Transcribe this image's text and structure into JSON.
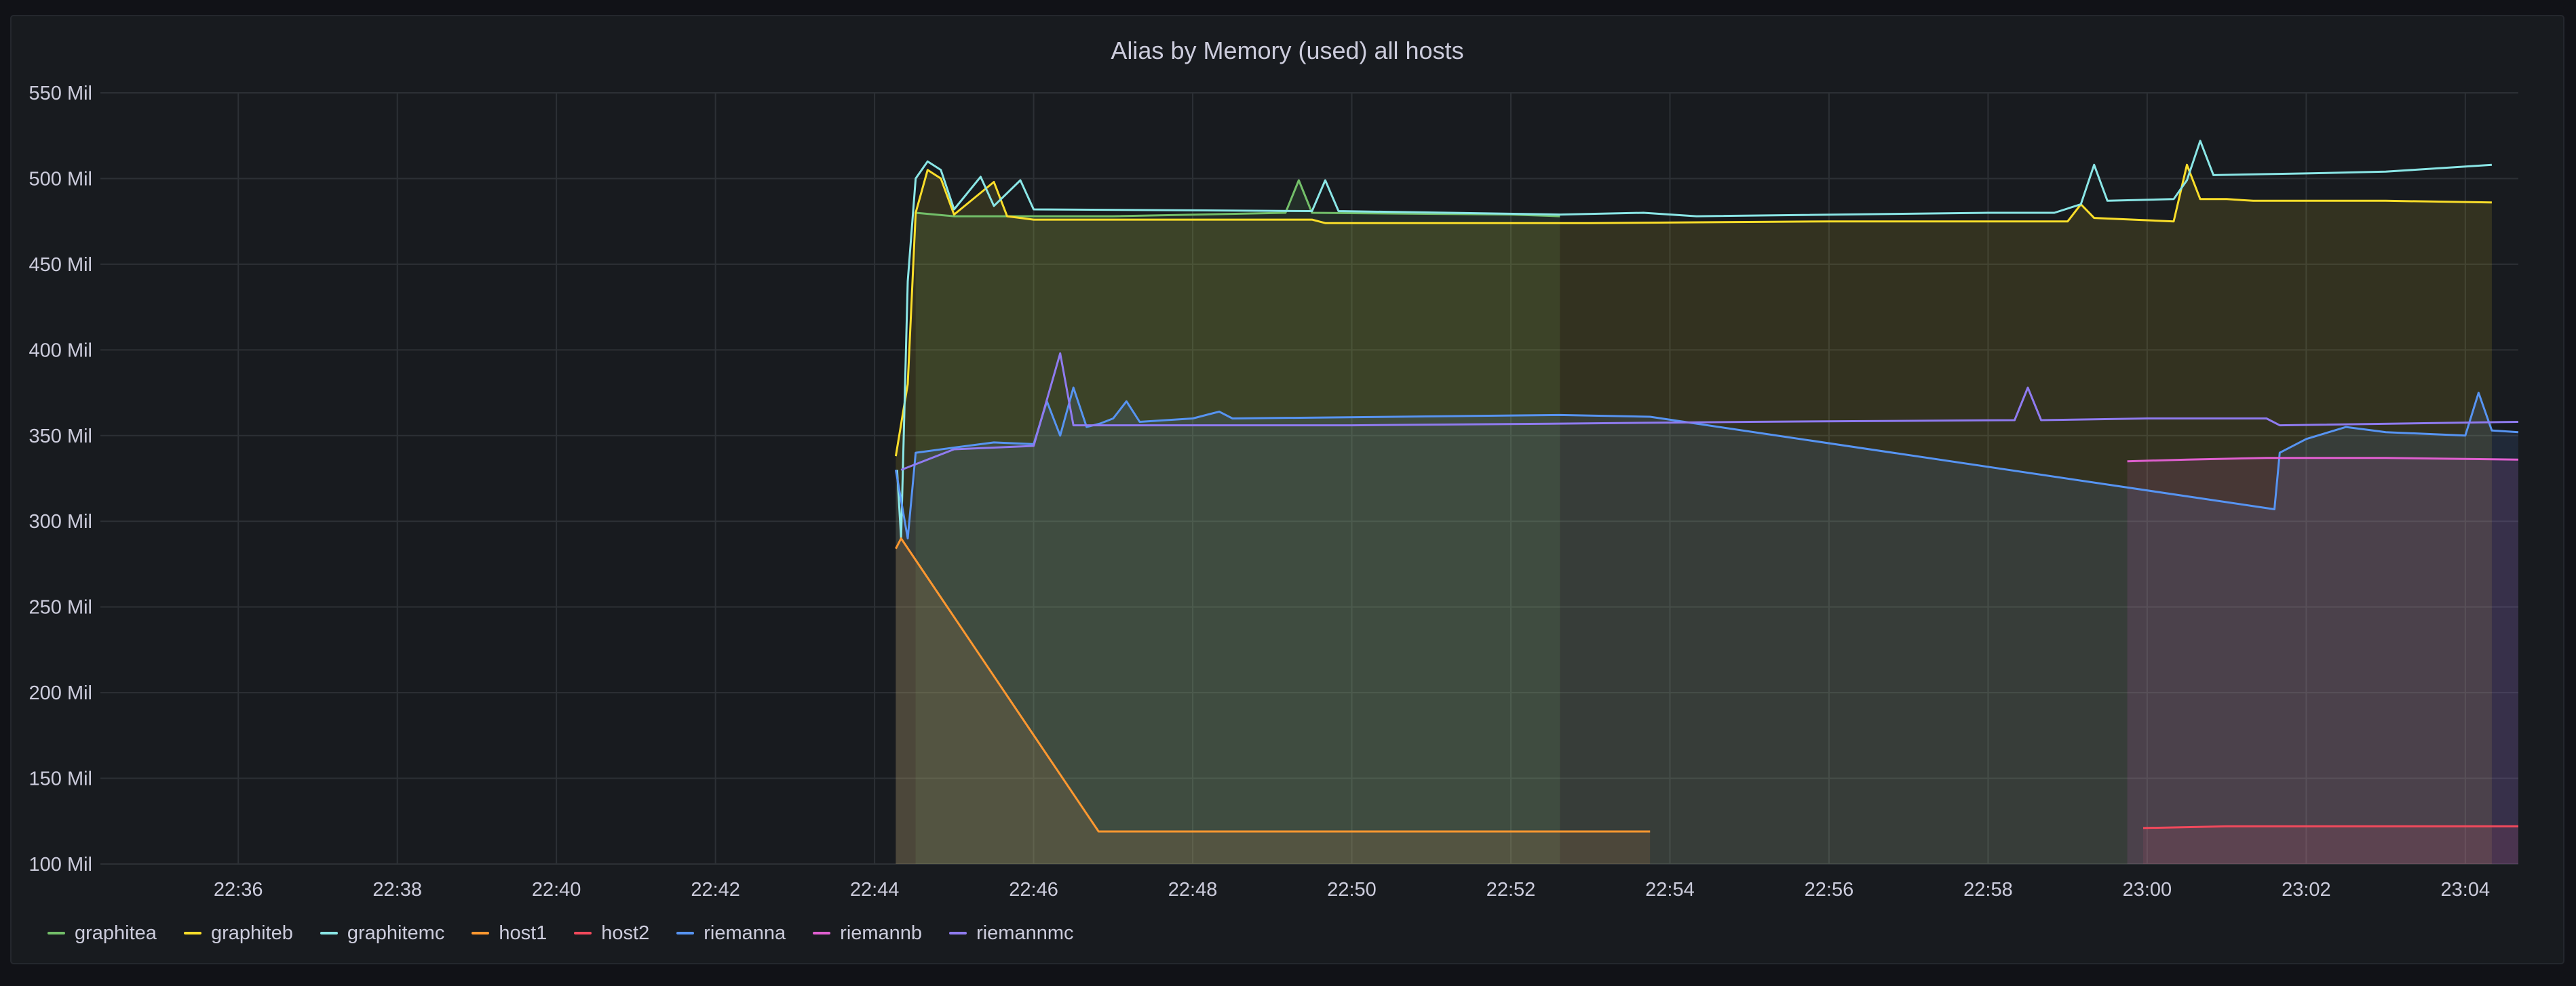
{
  "panel": {
    "title": "Alias by Memory (used) all hosts"
  },
  "chart_data": {
    "type": "line",
    "title": "Alias by Memory (used) all hosts",
    "xlabel": "",
    "ylabel": "",
    "ylim": [
      100,
      550
    ],
    "yticks": [
      {
        "value": 100,
        "label": "100 Mil"
      },
      {
        "value": 150,
        "label": "150 Mil"
      },
      {
        "value": 200,
        "label": "200 Mil"
      },
      {
        "value": 250,
        "label": "250 Mil"
      },
      {
        "value": 300,
        "label": "300 Mil"
      },
      {
        "value": 350,
        "label": "350 Mil"
      },
      {
        "value": 400,
        "label": "400 Mil"
      },
      {
        "value": 450,
        "label": "450 Mil"
      },
      {
        "value": 500,
        "label": "500 Mil"
      },
      {
        "value": 550,
        "label": "550 Mil"
      }
    ],
    "xlim": [
      "22:34:16",
      "23:04:40"
    ],
    "xticks": [
      "22:36",
      "22:38",
      "22:40",
      "22:42",
      "22:44",
      "22:46",
      "22:48",
      "22:50",
      "22:52",
      "22:54",
      "22:56",
      "22:58",
      "23:00",
      "23:02",
      "23:04"
    ],
    "grid": true,
    "legend_position": "bottom-left",
    "series": [
      {
        "name": "graphitea",
        "color": "#73bf69",
        "fill": true,
        "points": [
          [
            "22:44:31",
            480
          ],
          [
            "22:45:00",
            478
          ],
          [
            "22:47:00",
            478
          ],
          [
            "22:49:10",
            480
          ],
          [
            "22:49:20",
            499
          ],
          [
            "22:49:30",
            480
          ],
          [
            "22:52:00",
            479
          ],
          [
            "22:52:37",
            478
          ]
        ]
      },
      {
        "name": "graphiteb",
        "color": "#fade2a",
        "fill": true,
        "points": [
          [
            "22:44:16",
            338
          ],
          [
            "22:44:25",
            380
          ],
          [
            "22:44:31",
            480
          ],
          [
            "22:44:40",
            505
          ],
          [
            "22:44:50",
            500
          ],
          [
            "22:45:00",
            479
          ],
          [
            "22:45:30",
            498
          ],
          [
            "22:45:40",
            478
          ],
          [
            "22:46:00",
            476
          ],
          [
            "22:49:30",
            476
          ],
          [
            "22:49:40",
            474
          ],
          [
            "22:53:00",
            474
          ],
          [
            "22:56:00",
            475
          ],
          [
            "22:59:00",
            475
          ],
          [
            "22:59:10",
            485
          ],
          [
            "22:59:20",
            477
          ],
          [
            "23:00:20",
            475
          ],
          [
            "23:00:30",
            508
          ],
          [
            "23:00:40",
            488
          ],
          [
            "23:01:00",
            488
          ],
          [
            "23:01:20",
            487
          ],
          [
            "23:03:00",
            487
          ],
          [
            "23:04:20",
            486
          ]
        ]
      },
      {
        "name": "graphitemc",
        "color": "#8ae6e6",
        "fill": false,
        "points": [
          [
            "22:44:17",
            330
          ],
          [
            "22:44:20",
            290
          ],
          [
            "22:44:25",
            440
          ],
          [
            "22:44:31",
            500
          ],
          [
            "22:44:40",
            510
          ],
          [
            "22:44:50",
            505
          ],
          [
            "22:45:00",
            482
          ],
          [
            "22:45:20",
            501
          ],
          [
            "22:45:30",
            484
          ],
          [
            "22:45:50",
            499
          ],
          [
            "22:46:00",
            482
          ],
          [
            "22:49:30",
            481
          ],
          [
            "22:49:40",
            499
          ],
          [
            "22:49:50",
            481
          ],
          [
            "22:52:37",
            479
          ],
          [
            "22:53:40",
            480
          ],
          [
            "22:54:20",
            478
          ],
          [
            "22:58:00",
            480
          ],
          [
            "22:58:50",
            480
          ],
          [
            "22:59:10",
            485
          ],
          [
            "22:59:20",
            508
          ],
          [
            "22:59:30",
            487
          ],
          [
            "23:00:20",
            488
          ],
          [
            "23:00:30",
            499
          ],
          [
            "23:00:40",
            522
          ],
          [
            "23:00:50",
            502
          ],
          [
            "23:02:00",
            503
          ],
          [
            "23:03:00",
            504
          ],
          [
            "23:04:20",
            508
          ]
        ]
      },
      {
        "name": "host1",
        "color": "#ff9830",
        "fill": true,
        "points": [
          [
            "22:44:16",
            284
          ],
          [
            "22:44:20",
            290
          ],
          [
            "22:46:49",
            119
          ],
          [
            "22:50:00",
            119
          ],
          [
            "22:52:37",
            119
          ],
          [
            "22:53:45",
            119
          ]
        ]
      },
      {
        "name": "host2",
        "color": "#f2495c",
        "fill": true,
        "points": [
          [
            "22:59:57",
            121
          ],
          [
            "23:01:00",
            122
          ],
          [
            "23:04:40",
            122
          ]
        ]
      },
      {
        "name": "riemanna",
        "color": "#5794f2",
        "fill": true,
        "points": [
          [
            "22:44:16",
            330
          ],
          [
            "22:44:25",
            290
          ],
          [
            "22:44:31",
            340
          ],
          [
            "22:45:00",
            343
          ],
          [
            "22:45:30",
            346
          ],
          [
            "22:46:00",
            345
          ],
          [
            "22:46:10",
            370
          ],
          [
            "22:46:20",
            350
          ],
          [
            "22:46:30",
            378
          ],
          [
            "22:46:40",
            355
          ],
          [
            "22:46:50",
            357
          ],
          [
            "22:47:00",
            360
          ],
          [
            "22:47:10",
            370
          ],
          [
            "22:47:20",
            358
          ],
          [
            "22:48:00",
            360
          ],
          [
            "22:48:20",
            364
          ],
          [
            "22:48:30",
            360
          ],
          [
            "22:52:37",
            362
          ],
          [
            "22:53:45",
            361
          ],
          [
            "23:01:36",
            307
          ],
          [
            "23:01:40",
            340
          ],
          [
            "23:02:00",
            348
          ],
          [
            "23:02:30",
            355
          ],
          [
            "23:03:00",
            352
          ],
          [
            "23:04:00",
            350
          ],
          [
            "23:04:10",
            375
          ],
          [
            "23:04:20",
            353
          ],
          [
            "23:04:40",
            352
          ]
        ]
      },
      {
        "name": "riemannb",
        "color": "#e05fd0",
        "fill": true,
        "points": [
          [
            "22:59:45",
            335
          ],
          [
            "23:00:30",
            336
          ],
          [
            "23:01:30",
            337
          ],
          [
            "23:03:00",
            337
          ],
          [
            "23:04:40",
            336
          ]
        ]
      },
      {
        "name": "riemannmc",
        "color": "#8f7bf0",
        "fill": false,
        "points": [
          [
            "22:44:20",
            330
          ],
          [
            "22:45:00",
            342
          ],
          [
            "22:46:00",
            344
          ],
          [
            "22:46:20",
            398
          ],
          [
            "22:46:30",
            356
          ],
          [
            "22:50:00",
            356
          ],
          [
            "22:52:37",
            357
          ],
          [
            "22:55:00",
            358
          ],
          [
            "22:58:20",
            359
          ],
          [
            "22:58:30",
            378
          ],
          [
            "22:58:40",
            359
          ],
          [
            "23:00:00",
            360
          ],
          [
            "23:01:30",
            360
          ],
          [
            "23:01:40",
            356
          ],
          [
            "23:04:40",
            358
          ]
        ]
      }
    ]
  }
}
